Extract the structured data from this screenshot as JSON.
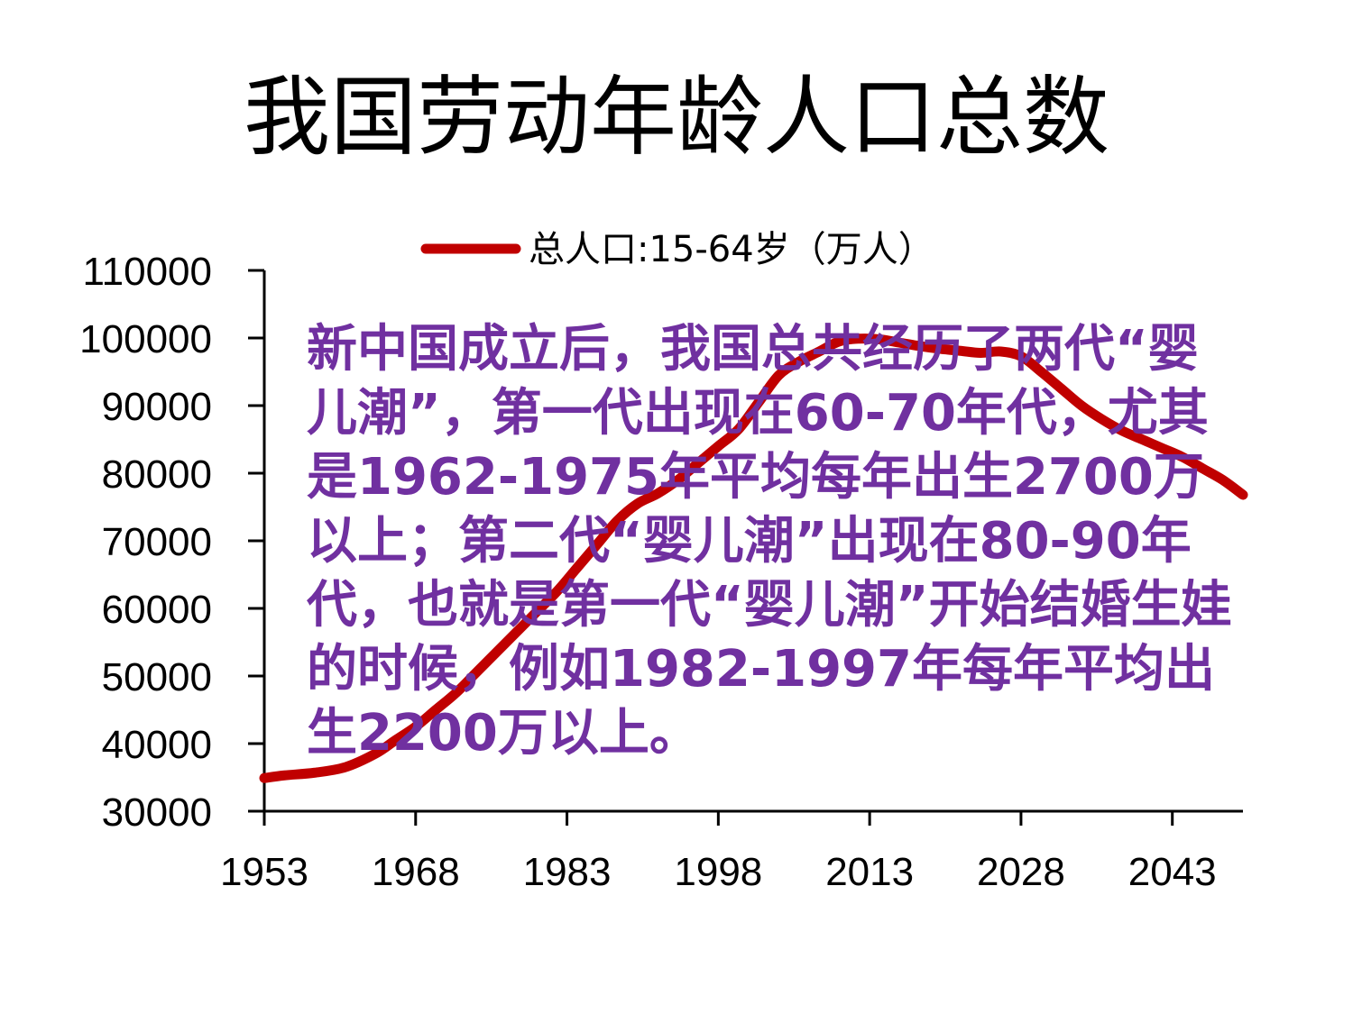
{
  "slide": {
    "title": "我国劳动年龄人口总数",
    "note": "新中国成立后，我国总共经历了两代“婴儿潮”，第一代出现在60-70年代，尤其是1962-1975年平均每年出生2700万以上；第二代“婴儿潮”出现在80-90年代，也就是第一代“婴儿潮”开始结婚生娃的时候，例如1982-1997年每年平均出生2200万以上。"
  },
  "colors": {
    "series": "#c00000",
    "note": "#7030a0"
  },
  "chart_data": {
    "type": "line",
    "legend_position": "top",
    "grid": false,
    "xlim": [
      1953,
      2050
    ],
    "ylim": [
      30000,
      110000
    ],
    "x_ticks": [
      1953,
      1968,
      1983,
      1998,
      2013,
      2028,
      2043
    ],
    "y_ticks": [
      30000,
      40000,
      50000,
      60000,
      70000,
      80000,
      90000,
      100000,
      110000
    ],
    "series": [
      {
        "name": "总人口:15-64岁（万人）",
        "color": "#c00000",
        "x": [
          1953,
          1955,
          1958,
          1961,
          1964,
          1966,
          1968,
          1970,
          1972,
          1974,
          1976,
          1978,
          1980,
          1982,
          1984,
          1986,
          1988,
          1990,
          1992,
          1994,
          1996,
          1998,
          2000,
          2002,
          2004,
          2006,
          2008,
          2010,
          2012,
          2014,
          2016,
          2018,
          2020,
          2022,
          2024,
          2026,
          2028,
          2030,
          2032,
          2034,
          2036,
          2038,
          2040,
          2042,
          2044,
          2046,
          2048,
          2050
        ],
        "values": [
          34900,
          35300,
          35700,
          36500,
          38500,
          40500,
          42500,
          45000,
          47500,
          50500,
          53500,
          56500,
          59500,
          62500,
          66000,
          69500,
          73000,
          75500,
          77000,
          79000,
          81500,
          84000,
          86500,
          90500,
          94500,
          96500,
          98000,
          99500,
          99900,
          99800,
          99300,
          98800,
          98400,
          98100,
          97800,
          98000,
          97300,
          95000,
          92500,
          90000,
          88000,
          86300,
          85000,
          83700,
          82400,
          80700,
          79000,
          76800
        ]
      }
    ]
  }
}
